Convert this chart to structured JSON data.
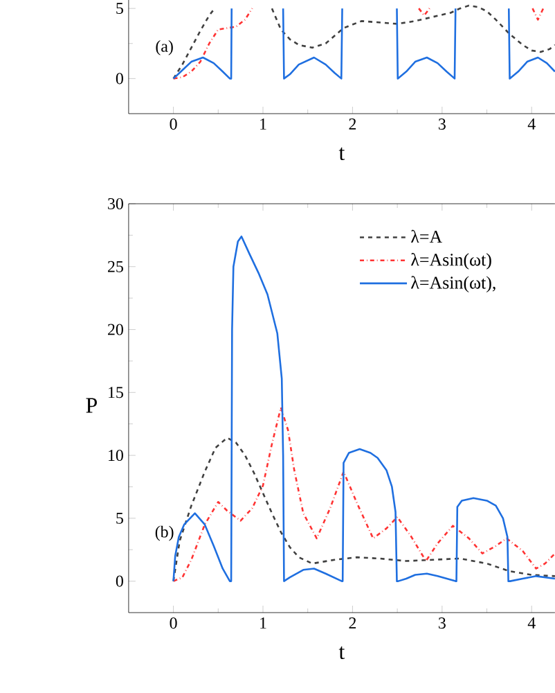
{
  "chart_data": [
    {
      "type": "line",
      "xlabel": "t",
      "annotations": [
        "(a)"
      ],
      "xlim": [
        -0.5,
        4.26
      ],
      "ylim": [
        -2.5,
        5.6
      ],
      "xticks": [
        0,
        1,
        2,
        3,
        4
      ],
      "yticks": [
        0,
        5
      ],
      "series": [
        {
          "color": "#404040",
          "line_style": "dashed",
          "x": [
            0,
            0.1,
            0.2,
            0.3,
            0.4,
            0.46,
            0.52,
            0.8,
            1.04,
            1.1,
            1.2,
            1.3,
            1.4,
            1.55,
            1.7,
            1.9,
            2.1,
            2.3,
            2.5,
            2.7,
            2.9,
            3.1,
            3.2,
            3.3,
            3.4,
            3.5,
            3.6,
            3.75,
            3.9,
            4.0,
            4.1,
            4.2,
            4.26
          ],
          "values": [
            0,
            1.0,
            2.2,
            3.4,
            4.5,
            5.0,
            null,
            null,
            null,
            5.0,
            3.5,
            2.8,
            2.4,
            2.2,
            2.5,
            3.6,
            4.1,
            4.0,
            3.9,
            4.1,
            4.4,
            4.7,
            5.0,
            5.2,
            5.1,
            4.8,
            4.2,
            3.2,
            2.4,
            2.0,
            1.9,
            2.1,
            2.4
          ]
        },
        {
          "color": "#ff3333",
          "line_style": "dashdot",
          "x": [
            0,
            0.1,
            0.2,
            0.3,
            0.4,
            0.5,
            0.6,
            0.7,
            0.8,
            0.88,
            1.5,
            2.74,
            2.8,
            2.86,
            3.5,
            4.01,
            4.07,
            4.13
          ],
          "values": [
            0,
            0.1,
            0.5,
            1.2,
            2.5,
            3.5,
            3.6,
            3.7,
            4.2,
            5.0,
            null,
            5.0,
            4.5,
            5.0,
            null,
            5.0,
            4.2,
            5.0
          ]
        },
        {
          "color": "#1f6fe0",
          "line_style": "solid",
          "x": [
            0,
            0.1,
            0.2,
            0.33,
            0.45,
            0.55,
            0.63,
            0.645,
            0.65,
            0.9,
            1.225,
            1.235,
            1.3,
            1.4,
            1.57,
            1.7,
            1.8,
            1.875,
            1.885,
            2.2,
            2.495,
            2.505,
            2.6,
            2.7,
            2.83,
            2.95,
            3.05,
            3.14,
            3.15,
            3.45,
            3.745,
            3.755,
            3.85,
            3.95,
            4.07,
            4.17,
            4.26
          ],
          "values": [
            0,
            0.6,
            1.2,
            1.5,
            1.1,
            0.5,
            0,
            0,
            5,
            null,
            5,
            0,
            0.3,
            1.0,
            1.5,
            1.0,
            0.4,
            0,
            5,
            null,
            5,
            0,
            0.5,
            1.2,
            1.5,
            1.1,
            0.5,
            0,
            5,
            null,
            5,
            0,
            0.5,
            1.2,
            1.5,
            1.1,
            0.5
          ]
        }
      ]
    },
    {
      "type": "line",
      "xlabel": "t",
      "ylabel": "P",
      "annotations": [
        "(b)"
      ],
      "legend": "top right",
      "xlim": [
        -0.5,
        4.26
      ],
      "ylim": [
        -2.5,
        30
      ],
      "xticks": [
        0,
        1,
        2,
        3,
        4
      ],
      "yticks": [
        0,
        5,
        10,
        15,
        20,
        25,
        30
      ],
      "series": [
        {
          "name": "λ=A",
          "color": "#404040",
          "line_style": "dashed",
          "x": [
            0,
            0.07,
            0.2,
            0.35,
            0.47,
            0.6,
            0.7,
            0.8,
            0.9,
            1.0,
            1.1,
            1.2,
            1.3,
            1.4,
            1.55,
            1.8,
            2.05,
            2.3,
            2.6,
            2.9,
            3.2,
            3.5,
            3.75,
            4.0,
            4.26
          ],
          "values": [
            0,
            3.2,
            6.0,
            8.7,
            10.6,
            11.4,
            11.0,
            10.0,
            8.6,
            7.0,
            5.4,
            3.9,
            2.7,
            1.9,
            1.4,
            1.7,
            1.9,
            1.8,
            1.6,
            1.7,
            1.8,
            1.4,
            0.8,
            0.5,
            0.4
          ]
        },
        {
          "name": "λ=Asin(ωt)",
          "color": "#ff3333",
          "line_style": "dashdot",
          "x": [
            0,
            0.1,
            0.2,
            0.35,
            0.5,
            0.6,
            0.75,
            0.88,
            1.0,
            1.1,
            1.2,
            1.28,
            1.35,
            1.45,
            1.6,
            1.75,
            1.9,
            2.05,
            2.23,
            2.38,
            2.5,
            2.65,
            2.82,
            2.95,
            3.12,
            3.3,
            3.45,
            3.6,
            3.72,
            3.9,
            4.05,
            4.15,
            4.26
          ],
          "values": [
            0,
            0.3,
            1.7,
            4.5,
            6.3,
            5.6,
            4.8,
            5.8,
            7.6,
            10.9,
            13.8,
            12.0,
            8.8,
            5.4,
            3.4,
            5.8,
            8.7,
            6.2,
            3.4,
            4.2,
            5.1,
            3.6,
            1.6,
            3.0,
            4.4,
            3.4,
            2.2,
            2.8,
            3.4,
            2.4,
            1.0,
            1.4,
            2.2
          ]
        },
        {
          "name": "λ=Asin(ωt),",
          "color": "#1f6fe0",
          "line_style": "solid",
          "x": [
            0,
            0.02,
            0.06,
            0.12,
            0.24,
            0.35,
            0.45,
            0.55,
            0.63,
            0.645,
            0.655,
            0.67,
            0.72,
            0.76,
            0.85,
            0.95,
            1.05,
            1.16,
            1.21,
            1.225,
            1.235,
            1.3,
            1.45,
            1.57,
            1.7,
            1.88,
            1.89,
            1.9,
            1.96,
            2.08,
            2.2,
            2.28,
            2.38,
            2.44,
            2.48,
            2.495,
            2.51,
            2.6,
            2.7,
            2.83,
            2.95,
            3.15,
            3.16,
            3.17,
            3.22,
            3.35,
            3.5,
            3.6,
            3.68,
            3.73,
            3.74,
            3.76,
            3.9,
            4.05,
            4.26
          ],
          "values": [
            0,
            2.0,
            3.5,
            4.5,
            5.4,
            4.5,
            2.8,
            1.0,
            0,
            0,
            20,
            25,
            27.0,
            27.4,
            26.0,
            24.5,
            22.8,
            19.7,
            16.1,
            10,
            0,
            0.3,
            0.9,
            1.0,
            0.6,
            0,
            0,
            9.4,
            10.2,
            10.5,
            10.2,
            9.8,
            8.8,
            7.5,
            5.5,
            0,
            0,
            0.2,
            0.5,
            0.6,
            0.4,
            0,
            0,
            5.9,
            6.4,
            6.6,
            6.4,
            6.0,
            5.0,
            3.5,
            0,
            0,
            0.2,
            0.4,
            0.2
          ]
        }
      ]
    }
  ]
}
